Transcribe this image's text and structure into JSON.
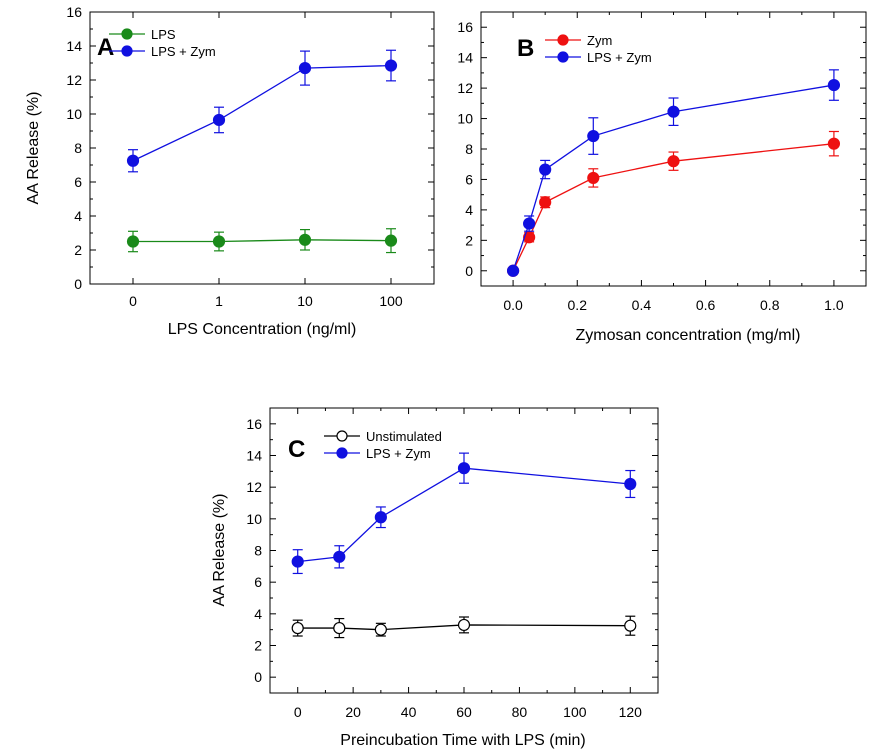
{
  "chart_data": [
    {
      "type": "line",
      "panel_label": "A",
      "xlabel": "LPS Concentration (ng/ml)",
      "ylabel": "AA Release (%)",
      "x_scale": "categorical",
      "categories": [
        "0",
        "1",
        "10",
        "100"
      ],
      "ylim": [
        0,
        16
      ],
      "yticks": [
        0,
        2,
        4,
        6,
        8,
        10,
        12,
        14,
        16
      ],
      "legend_position": "top-left",
      "series": [
        {
          "name": "LPS",
          "color": "#1a8a1a",
          "marker": "filled-circle",
          "values": [
            2.5,
            2.5,
            2.6,
            2.55
          ],
          "errors": [
            0.6,
            0.55,
            0.6,
            0.7
          ]
        },
        {
          "name": "LPS + Zym",
          "color": "#1010e0",
          "marker": "filled-circle",
          "values": [
            7.25,
            9.65,
            12.7,
            12.85
          ],
          "errors": [
            0.65,
            0.75,
            1.0,
            0.9
          ]
        }
      ]
    },
    {
      "type": "line",
      "panel_label": "B",
      "xlabel": "Zymosan concentration (mg/ml)",
      "ylabel": "",
      "xlim": [
        -0.1,
        1.1
      ],
      "xticks": [
        0.0,
        0.2,
        0.4,
        0.6,
        0.8,
        1.0
      ],
      "xtick_labels": [
        "0.0",
        "0.2",
        "0.4",
        "0.6",
        "0.8",
        "1.0"
      ],
      "ylim": [
        -1,
        17
      ],
      "yticks": [
        0,
        2,
        4,
        6,
        8,
        10,
        12,
        14,
        16
      ],
      "legend_position": "top-left",
      "series": [
        {
          "name": "Zym",
          "color": "#ee1111",
          "marker": "filled-circle",
          "x": [
            0,
            0.05,
            0.1,
            0.25,
            0.5,
            1.0
          ],
          "values": [
            0,
            2.2,
            4.5,
            6.1,
            7.2,
            8.35
          ],
          "errors": [
            0,
            0.3,
            0.35,
            0.6,
            0.6,
            0.8
          ]
        },
        {
          "name": "LPS + Zym",
          "color": "#1010e0",
          "marker": "filled-circle",
          "x": [
            0,
            0.05,
            0.1,
            0.25,
            0.5,
            1.0
          ],
          "values": [
            0,
            3.1,
            6.65,
            8.85,
            10.45,
            12.2
          ],
          "errors": [
            0,
            0.5,
            0.6,
            1.2,
            0.9,
            1.0
          ]
        }
      ]
    },
    {
      "type": "line",
      "panel_label": "C",
      "xlabel": "Preincubation Time with LPS (min)",
      "ylabel": "AA Release (%)",
      "xlim": [
        -10,
        130
      ],
      "xticks": [
        0,
        20,
        40,
        60,
        80,
        100,
        120
      ],
      "xtick_labels": [
        "0",
        "20",
        "40",
        "60",
        "80",
        "100",
        "120"
      ],
      "ylim": [
        -1,
        17
      ],
      "yticks": [
        0,
        2,
        4,
        6,
        8,
        10,
        12,
        14,
        16
      ],
      "legend_position": "top-left",
      "series": [
        {
          "name": "Unstimulated",
          "color": "#000000",
          "marker": "open-circle",
          "x": [
            0,
            15,
            30,
            60,
            120
          ],
          "values": [
            3.1,
            3.1,
            3.0,
            3.3,
            3.25
          ],
          "errors": [
            0.5,
            0.6,
            0.4,
            0.5,
            0.6
          ]
        },
        {
          "name": "LPS + Zym",
          "color": "#1010e0",
          "marker": "filled-circle",
          "x": [
            0,
            15,
            30,
            60,
            120
          ],
          "values": [
            7.3,
            7.6,
            10.1,
            13.2,
            12.2
          ],
          "errors": [
            0.75,
            0.7,
            0.65,
            0.95,
            0.85
          ]
        }
      ]
    }
  ]
}
